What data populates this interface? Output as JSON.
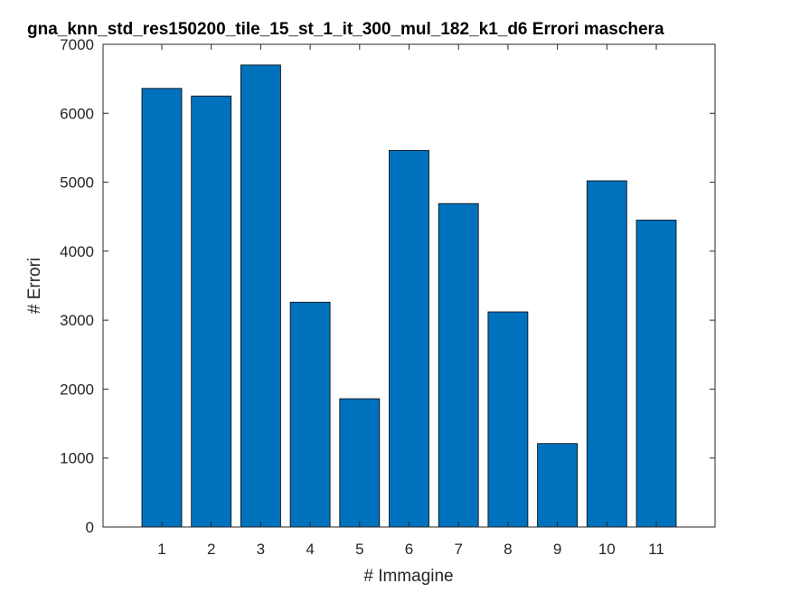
{
  "chart_data": {
    "type": "bar",
    "title": "gna_knn_std_res150200_tile_15_st_1_it_300_mul_182_k1_d6 Errori maschera",
    "xlabel": "# Immagine",
    "ylabel": "# Errori",
    "categories": [
      "1",
      "2",
      "3",
      "4",
      "5",
      "6",
      "7",
      "8",
      "9",
      "10",
      "11"
    ],
    "values": [
      6360,
      6250,
      6700,
      3260,
      1860,
      5460,
      4690,
      3120,
      1210,
      5020,
      4450
    ],
    "ylim": [
      0,
      7000
    ],
    "yticks": [
      0,
      1000,
      2000,
      3000,
      4000,
      5000,
      6000,
      7000
    ],
    "grid": false,
    "bar_color": "#0072BD"
  }
}
